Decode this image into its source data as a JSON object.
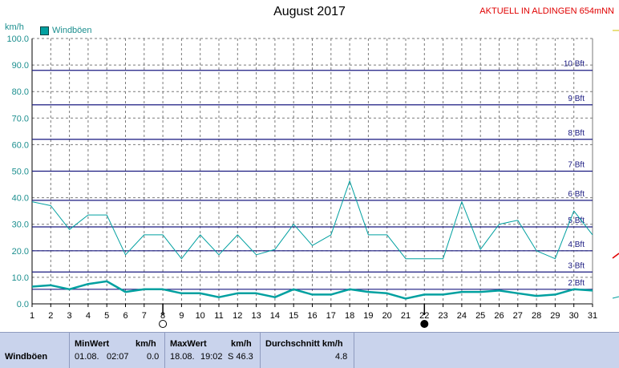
{
  "title": "August 2017",
  "station": "AKTUELL IN ALDINGEN 654mNN",
  "y_unit": "km/h",
  "legend_label": "Windböen",
  "colors": {
    "series": "#00a0a0",
    "bft": "#1a1a80",
    "grid": "#7a7a7a",
    "station": "#e00000"
  },
  "chart_data": {
    "type": "line",
    "title": "August 2017",
    "ylabel": "km/h",
    "ylim": [
      0,
      100
    ],
    "yticks": [
      "0.0",
      "10.0",
      "20.0",
      "30.0",
      "40.0",
      "50.0",
      "60.0",
      "70.0",
      "80.0",
      "90.0",
      "100.0"
    ],
    "x": [
      "1",
      "2",
      "3",
      "4",
      "5",
      "6",
      "7",
      "8",
      "9",
      "10",
      "11",
      "12",
      "13",
      "14",
      "15",
      "16",
      "17",
      "18",
      "19",
      "20",
      "21",
      "22",
      "23",
      "24",
      "25",
      "26",
      "27",
      "28",
      "29",
      "30",
      "31"
    ],
    "series": [
      {
        "name": "Windböen",
        "values": [
          38.5,
          37,
          28,
          33.5,
          33.5,
          18.5,
          26,
          26,
          17,
          26,
          18.5,
          26,
          18.5,
          20.5,
          30,
          22,
          26,
          46.3,
          26,
          26,
          17,
          17,
          17,
          38.5,
          20.5,
          30,
          31.5,
          20,
          17,
          35,
          26
        ]
      },
      {
        "values": [
          6.5,
          7,
          5.5,
          7.5,
          8.5,
          4.5,
          5.5,
          5.5,
          4,
          4,
          2.5,
          4,
          4,
          2.5,
          5.5,
          3.5,
          3.5,
          5.5,
          4.5,
          4,
          2,
          3.5,
          3.5,
          4.5,
          4.5,
          5,
          4,
          3,
          3.5,
          5.5,
          5
        ]
      }
    ],
    "beaufort": [
      {
        "label": "2 Bft",
        "value": 5.5
      },
      {
        "label": "3 Bft",
        "value": 12
      },
      {
        "label": "4 Bft",
        "value": 20
      },
      {
        "label": "5 Bft",
        "value": 29
      },
      {
        "label": "6 Bft",
        "value": 39
      },
      {
        "label": "7 Bft",
        "value": 50
      },
      {
        "label": "8 Bft",
        "value": 62
      },
      {
        "label": "9 Bft",
        "value": 75
      },
      {
        "label": "10 Bft",
        "value": 88
      }
    ],
    "moon": [
      {
        "day": 8,
        "phase": "full"
      },
      {
        "day": 22,
        "phase": "new"
      }
    ]
  },
  "panel": {
    "row_label": "Windböen",
    "min_header": "MinWert",
    "min_unit": "km/h",
    "min_date": "01.08.",
    "min_time": "02:07",
    "min_value": "0.0",
    "max_header": "MaxWert",
    "max_unit": "km/h",
    "max_date": "18.08.",
    "max_time": "19:02",
    "max_value": "S 46.3",
    "avg_header": "Durchschnitt km/h",
    "avg_value": "4.8"
  }
}
